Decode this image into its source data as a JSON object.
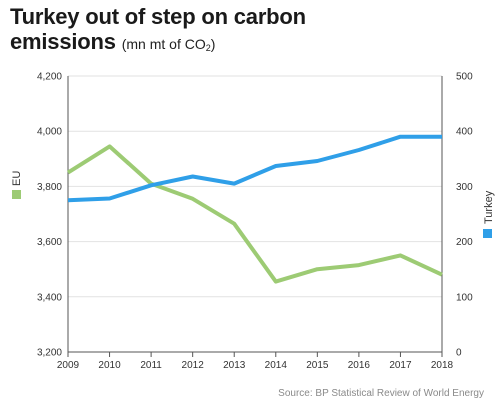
{
  "title": {
    "line1": "Turkey out of step on carbon",
    "line2": "emissions",
    "unit_prefix": "(mn mt of CO",
    "unit_sub": "2",
    "unit_suffix": ")"
  },
  "source": "Source: BP Statistical Review of World Energy",
  "colors": {
    "eu": "#9dcb74",
    "turkey": "#2f9fe8",
    "grid": "#e2e2e2",
    "axis": "#555555"
  },
  "chart_data": {
    "type": "line",
    "x": [
      2009,
      2010,
      2011,
      2012,
      2013,
      2014,
      2015,
      2016,
      2017,
      2018
    ],
    "series": [
      {
        "name": "EU",
        "axis": "left",
        "values": [
          3850,
          3945,
          3810,
          3755,
          3665,
          3455,
          3500,
          3515,
          3550,
          3480
        ]
      },
      {
        "name": "Turkey",
        "axis": "right",
        "values": [
          275,
          278,
          302,
          318,
          305,
          337,
          346,
          366,
          390,
          390
        ]
      }
    ],
    "y_left": {
      "min": 3200,
      "max": 4200,
      "ticks": [
        "3,200",
        "3,400",
        "3,600",
        "3,800",
        "4,000",
        "4,200"
      ],
      "tick_values": [
        3200,
        3400,
        3600,
        3800,
        4000,
        4200
      ]
    },
    "y_right": {
      "min": 0,
      "max": 500,
      "ticks": [
        "0",
        "100",
        "200",
        "300",
        "400",
        "500"
      ],
      "tick_values": [
        0,
        100,
        200,
        300,
        400,
        500
      ]
    },
    "x_ticks": [
      "2009",
      "2010",
      "2011",
      "2012",
      "2013",
      "2014",
      "2015",
      "2016",
      "2017",
      "2018"
    ],
    "grid": "horizontal",
    "legend": [
      {
        "name": "EU",
        "placement": "left-axis"
      },
      {
        "name": "Turkey",
        "placement": "right-axis"
      }
    ]
  }
}
